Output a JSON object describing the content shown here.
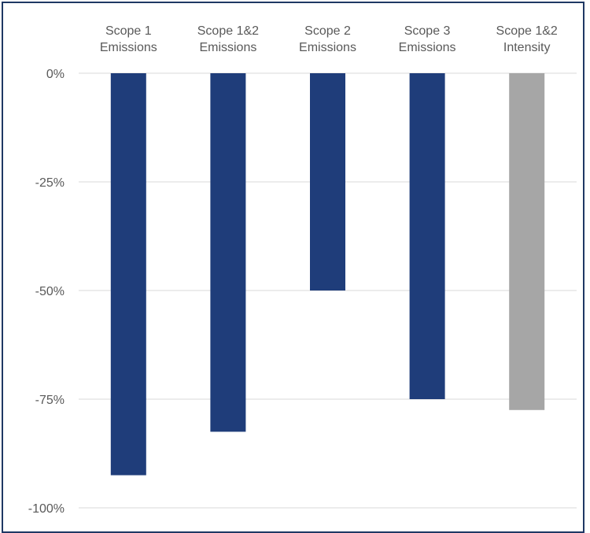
{
  "chart_data": {
    "type": "bar",
    "categories": [
      [
        "Scope 1",
        "Emissions"
      ],
      [
        "Scope 1&2",
        "Emissions"
      ],
      [
        "Scope 2",
        "Emissions"
      ],
      [
        "Scope 3",
        "Emissions"
      ],
      [
        "Scope 1&2",
        "Intensity"
      ]
    ],
    "values": [
      -92.5,
      -82.5,
      -50,
      -75,
      -77.5
    ],
    "bar_colors": [
      "#1f3d7a",
      "#1f3d7a",
      "#1f3d7a",
      "#1f3d7a",
      "#a6a6a6"
    ],
    "ylim": [
      -100,
      0
    ],
    "yticks": [
      0,
      -25,
      -50,
      -75,
      -100
    ],
    "ytick_labels": [
      "0%",
      "-25%",
      "-50%",
      "-75%",
      "-100%"
    ],
    "grid": true,
    "xaxis_position": "top",
    "title": "",
    "xlabel": "",
    "ylabel": ""
  },
  "colors": {
    "frame_border": "#1f3864",
    "gridline": "#d9d9d9",
    "tick_text": "#595959"
  }
}
